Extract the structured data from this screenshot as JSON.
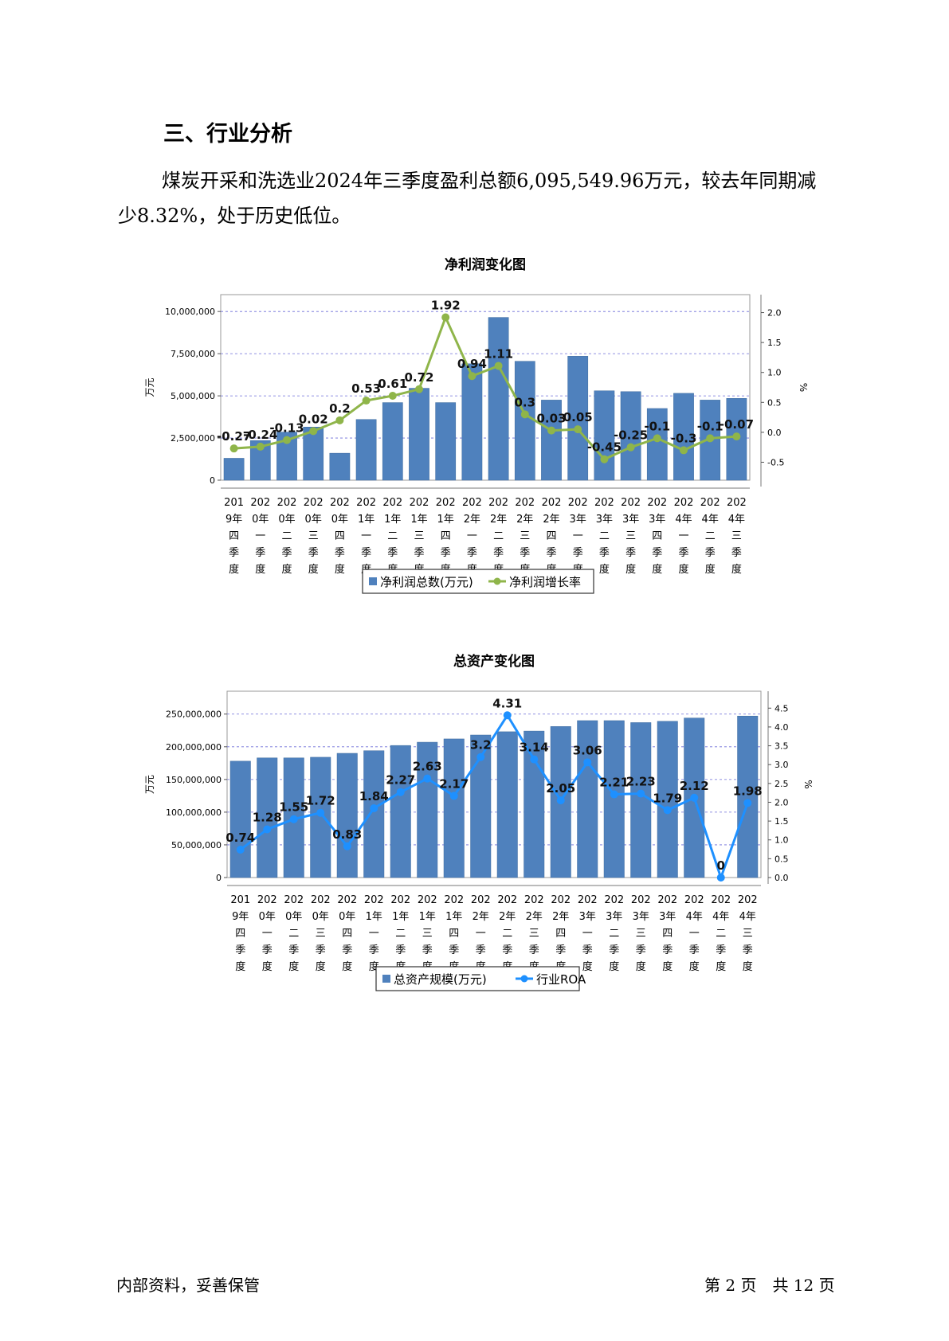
{
  "section": {
    "heading": "三、行业分析",
    "paragraph": "煤炭开采和洗选业2024年三季度盈利总额6,095,549.96万元，较去年同期减少8.32%，处于历史低位。"
  },
  "footer": {
    "left": "内部资料，妥善保管",
    "right": "第 2 页　共 12 页"
  },
  "colors": {
    "bar": "#4f81bd",
    "profit_line": "#8fb54a",
    "roa_line": "#1e90ff"
  },
  "chart_data": [
    {
      "type": "bar+line",
      "title": "净利润变化图",
      "ylabel": "万元",
      "y2label": "%",
      "categories": [
        "2019年四季度",
        "2020年一季度",
        "2020年二季度",
        "2020年三季度",
        "2020年四季度",
        "2021年一季度",
        "2021年二季度",
        "2021年三季度",
        "2021年四季度",
        "2022年一季度",
        "2022年二季度",
        "2022年三季度",
        "2022年四季度",
        "2023年一季度",
        "2023年二季度",
        "2023年三季度",
        "2023年四季度",
        "2024年一季度",
        "2024年二季度",
        "2024年三季度"
      ],
      "category_lines": [
        [
          "201",
          "9年",
          "四",
          "季",
          "度"
        ],
        [
          "202",
          "0年",
          "一",
          "季",
          "度"
        ],
        [
          "202",
          "0年",
          "二",
          "季",
          "度"
        ],
        [
          "202",
          "0年",
          "三",
          "季",
          "度"
        ],
        [
          "202",
          "0年",
          "四",
          "季",
          "度"
        ],
        [
          "202",
          "1年",
          "一",
          "季",
          "度"
        ],
        [
          "202",
          "1年",
          "二",
          "季",
          "度"
        ],
        [
          "202",
          "1年",
          "三",
          "季",
          "度"
        ],
        [
          "202",
          "1年",
          "四",
          "季",
          "度"
        ],
        [
          "202",
          "2年",
          "一",
          "季",
          "度"
        ],
        [
          "202",
          "2年",
          "二",
          "季",
          "度"
        ],
        [
          "202",
          "2年",
          "三",
          "季",
          "度"
        ],
        [
          "202",
          "2年",
          "四",
          "季",
          "度"
        ],
        [
          "202",
          "3年",
          "一",
          "季",
          "度"
        ],
        [
          "202",
          "3年",
          "二",
          "季",
          "度"
        ],
        [
          "202",
          "3年",
          "三",
          "季",
          "度"
        ],
        [
          "202",
          "3年",
          "四",
          "季",
          "度"
        ],
        [
          "202",
          "4年",
          "一",
          "季",
          "度"
        ],
        [
          "202",
          "4年",
          "二",
          "季",
          "度"
        ],
        [
          "202",
          "4年",
          "三",
          "季",
          "度"
        ]
      ],
      "ylim": [
        0,
        11000000
      ],
      "yticks": [
        0,
        2500000,
        5000000,
        7500000,
        10000000
      ],
      "ytick_labels": [
        "0",
        "2,500,000",
        "5,000,000",
        "7,500,000",
        "10,000,000"
      ],
      "y2lim": [
        -0.8,
        2.3
      ],
      "y2ticks": [
        -0.5,
        0.0,
        0.5,
        1.0,
        1.5,
        2.0
      ],
      "y2tick_labels": [
        "-0.5",
        "0.0",
        "0.5",
        "1.0",
        "1.5",
        "2.0"
      ],
      "grid": true,
      "legend_position": "bottom",
      "series": [
        {
          "name": "净利润总数(万元)",
          "kind": "bar",
          "axis": "left",
          "values": [
            1300000,
            2350000,
            2850000,
            3150000,
            1600000,
            3600000,
            4600000,
            5450000,
            4600000,
            6900000,
            9650000,
            7050000,
            4750000,
            7350000,
            5300000,
            5250000,
            4250000,
            5150000,
            4750000,
            4850000
          ]
        },
        {
          "name": "净利润增长率",
          "kind": "line",
          "axis": "right",
          "values": [
            -0.27,
            -0.24,
            -0.13,
            0.02,
            0.2,
            0.53,
            0.61,
            0.72,
            1.92,
            0.94,
            1.11,
            0.3,
            0.03,
            0.05,
            -0.45,
            -0.25,
            -0.1,
            -0.3,
            -0.1,
            -0.07
          ],
          "labels": [
            "-0.27",
            "-0.24",
            "-0.13",
            "0.02",
            "0.2",
            "0.53",
            "0.61",
            "0.72",
            "1.92",
            "0.94",
            "1.11",
            "0.3",
            "0.03",
            "0.05",
            "-0.45",
            "-0.25",
            "-0.1",
            "-0.3",
            "-0.1",
            "-0.07"
          ]
        }
      ]
    },
    {
      "type": "bar+line",
      "title": "总资产变化图",
      "ylabel": "万元",
      "y2label": "%",
      "categories": [
        "2019年四季度",
        "2020年一季度",
        "2020年二季度",
        "2020年三季度",
        "2020年四季度",
        "2021年一季度",
        "2021年二季度",
        "2021年三季度",
        "2021年四季度",
        "2022年一季度",
        "2022年二季度",
        "2022年三季度",
        "2022年四季度",
        "2023年一季度",
        "2023年二季度",
        "2023年三季度",
        "2023年四季度",
        "2024年一季度",
        "2024年二季度",
        "2024年三季度"
      ],
      "category_lines": [
        [
          "201",
          "9年",
          "四",
          "季",
          "度"
        ],
        [
          "202",
          "0年",
          "一",
          "季",
          "度"
        ],
        [
          "202",
          "0年",
          "二",
          "季",
          "度"
        ],
        [
          "202",
          "0年",
          "三",
          "季",
          "度"
        ],
        [
          "202",
          "0年",
          "四",
          "季",
          "度"
        ],
        [
          "202",
          "1年",
          "一",
          "季",
          "度"
        ],
        [
          "202",
          "1年",
          "二",
          "季",
          "度"
        ],
        [
          "202",
          "1年",
          "三",
          "季",
          "度"
        ],
        [
          "202",
          "1年",
          "四",
          "季",
          "度"
        ],
        [
          "202",
          "2年",
          "一",
          "季",
          "度"
        ],
        [
          "202",
          "2年",
          "二",
          "季",
          "度"
        ],
        [
          "202",
          "2年",
          "三",
          "季",
          "度"
        ],
        [
          "202",
          "2年",
          "四",
          "季",
          "度"
        ],
        [
          "202",
          "3年",
          "一",
          "季",
          "度"
        ],
        [
          "202",
          "3年",
          "二",
          "季",
          "度"
        ],
        [
          "202",
          "3年",
          "三",
          "季",
          "度"
        ],
        [
          "202",
          "3年",
          "四",
          "季",
          "度"
        ],
        [
          "202",
          "4年",
          "一",
          "季",
          "度"
        ],
        [
          "202",
          "4年",
          "二",
          "季",
          "度"
        ],
        [
          "202",
          "4年",
          "三",
          "季",
          "度"
        ]
      ],
      "ylim": [
        0,
        285000000
      ],
      "yticks": [
        0,
        50000000,
        100000000,
        150000000,
        200000000,
        250000000
      ],
      "ytick_labels": [
        "0",
        "50,000,000",
        "100,000,000",
        "150,000,000",
        "200,000,000",
        "250,000,000"
      ],
      "y2lim": [
        0,
        4.95
      ],
      "y2ticks": [
        0.0,
        0.5,
        1.0,
        1.5,
        2.0,
        2.5,
        3.0,
        3.5,
        4.0,
        4.5
      ],
      "y2tick_labels": [
        "0.0",
        "0.5",
        "1.0",
        "1.5",
        "2.0",
        "2.5",
        "3.0",
        "3.5",
        "4.0",
        "4.5"
      ],
      "grid": true,
      "legend_position": "bottom",
      "series": [
        {
          "name": "总资产规模(万元)",
          "kind": "bar",
          "axis": "left",
          "values": [
            178000000,
            183000000,
            183000000,
            184000000,
            190000000,
            194000000,
            202000000,
            207000000,
            212000000,
            218000000,
            223000000,
            224000000,
            231000000,
            240000000,
            240000000,
            237000000,
            239000000,
            244000000,
            0,
            247000000
          ]
        },
        {
          "name": "行业ROA",
          "kind": "line",
          "axis": "right",
          "values": [
            0.74,
            1.28,
            1.55,
            1.72,
            0.83,
            1.84,
            2.27,
            2.63,
            2.17,
            3.2,
            4.31,
            3.14,
            2.05,
            3.06,
            2.21,
            2.23,
            1.79,
            2.12,
            0,
            1.98
          ],
          "labels": [
            "0.74",
            "1.28",
            "1.55",
            "1.72",
            "0.83",
            "1.84",
            "2.27",
            "2.63",
            "2.17",
            "3.2",
            "4.31",
            "3.14",
            "2.05",
            "3.06",
            "2.21",
            "2.23",
            "1.79",
            "2.12",
            "0",
            "1.98"
          ]
        }
      ]
    }
  ]
}
